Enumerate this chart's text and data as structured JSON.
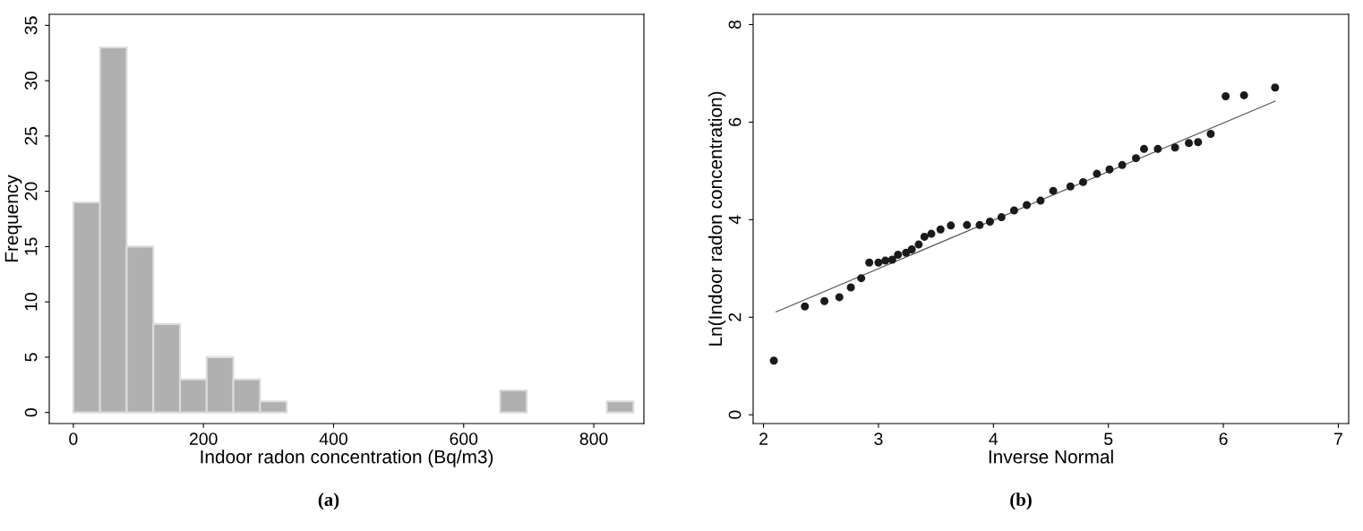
{
  "chart_data": [
    {
      "type": "histogram",
      "xlabel": "Indoor radon concentration (Bq/m3)",
      "ylabel": "Frequency",
      "color": "#b0b0b0",
      "bins": [
        0,
        41,
        82,
        123,
        164,
        205,
        246,
        287,
        328,
        369,
        410,
        451,
        492,
        533,
        574,
        615,
        656,
        697,
        738,
        779,
        820,
        861
      ],
      "values": [
        19,
        33,
        15,
        8,
        3,
        5,
        3,
        1,
        0,
        0,
        0,
        0,
        0,
        0,
        0,
        0,
        2,
        0,
        0,
        0,
        1
      ],
      "xlim": [
        -37,
        877
      ],
      "ylim": [
        -1,
        36
      ],
      "xticks": [
        0,
        200,
        400,
        600,
        800
      ],
      "yticks": [
        0,
        5,
        10,
        15,
        20,
        25,
        30,
        35
      ],
      "grid": false,
      "annotations": [
        "(a)"
      ]
    },
    {
      "type": "scatter",
      "xlabel": "Inverse Normal",
      "ylabel": "Ln(Indoor radon concentration)",
      "grid": false,
      "xlim": [
        1.91,
        7.09
      ],
      "ylim": [
        -0.18,
        8.21
      ],
      "xticks": [
        2,
        3,
        4,
        5,
        6,
        7
      ],
      "yticks": [
        0,
        2,
        4,
        6,
        8
      ],
      "series": [
        {
          "type": "scatter",
          "marker": "circle",
          "color": "#1a1a1a",
          "x": [
            2.09,
            2.36,
            2.53,
            2.66,
            2.76,
            2.85,
            2.92,
            3.0,
            3.06,
            3.12,
            3.17,
            3.24,
            3.29,
            3.35,
            3.4,
            3.46,
            3.54,
            3.63,
            3.77,
            3.88,
            3.97,
            4.07,
            4.18,
            4.29,
            4.41,
            4.52,
            4.67,
            4.78,
            4.9,
            5.01,
            5.12,
            5.24,
            5.31,
            5.43,
            5.58,
            5.7,
            5.78,
            5.89,
            6.02,
            6.18,
            6.45
          ],
          "values": [
            1.11,
            2.22,
            2.33,
            2.41,
            2.61,
            2.8,
            3.12,
            3.12,
            3.16,
            3.18,
            3.28,
            3.32,
            3.39,
            3.49,
            3.65,
            3.71,
            3.8,
            3.88,
            3.89,
            3.89,
            3.96,
            4.05,
            4.19,
            4.3,
            4.39,
            4.59,
            4.68,
            4.77,
            4.94,
            5.03,
            5.12,
            5.26,
            5.45,
            5.45,
            5.48,
            5.57,
            5.59,
            5.76,
            6.53,
            6.55,
            6.71
          ]
        },
        {
          "type": "line",
          "marker": "none",
          "color": "#555555",
          "x": [
            2.11,
            6.45
          ],
          "values": [
            2.11,
            6.43
          ]
        }
      ],
      "annotations": [
        "(b)"
      ]
    }
  ]
}
